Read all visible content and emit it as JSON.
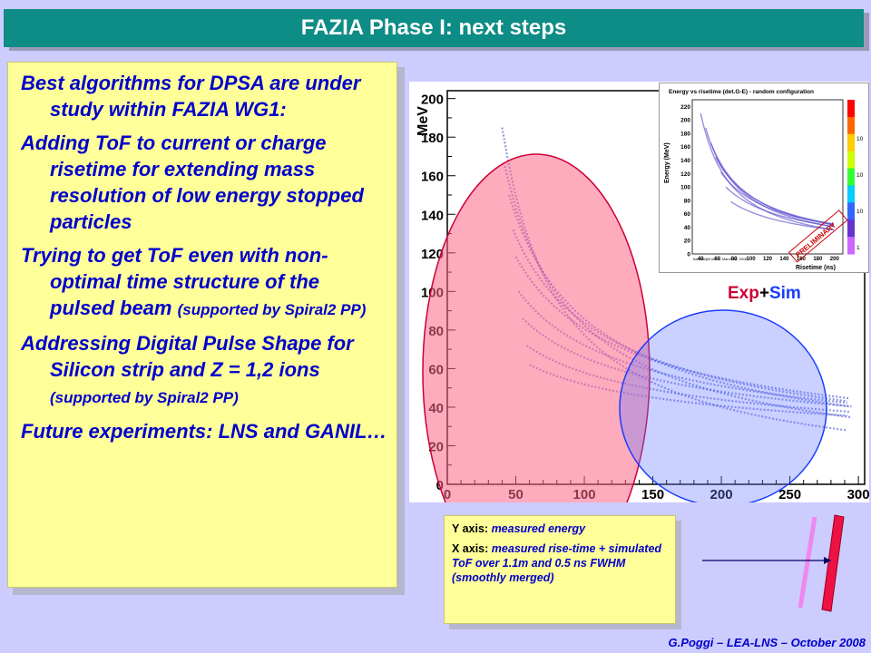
{
  "title": "FAZIA Phase I: next steps",
  "bullets": [
    {
      "text": "Best algorithms for DPSA are under study within FAZIA WG1:",
      "note": ""
    },
    {
      "text": "Adding ToF to current or charge risetime for extending mass resolution of low energy stopped particles",
      "note": ""
    },
    {
      "text": "Trying to get ToF even with non-optimal time structure of the pulsed beam",
      "note": "(supported by Spiral2 PP)"
    },
    {
      "text": "Addressing Digital Pulse Shape for Silicon strip and Z = 1,2 ions",
      "note": "(supported by Spiral2 PP)"
    },
    {
      "text": "Future experiments: LNS and GANIL…",
      "note": ""
    }
  ],
  "plot": {
    "y_unit": "MeV",
    "y_ticks": [
      "200",
      "180",
      "160",
      "140",
      "120",
      "100",
      "80",
      "60",
      "40",
      "20",
      "0"
    ],
    "x_ticks": [
      "0",
      "50",
      "100",
      "150",
      "200",
      "250",
      "300"
    ],
    "label_exp": "Exp",
    "label_plus": "+",
    "label_sim": "Sim",
    "colors": {
      "exp": "#cc0033",
      "sim": "#1a3cff",
      "plus": "#000000",
      "points": "#3344cc",
      "pink_region": "#ff6688",
      "blue_region": "#6677ff"
    }
  },
  "inset": {
    "title": "Energy vs risetime (det.G-E) - random configuration",
    "y_label": "Energy (MeV)",
    "x_label": "Risetime (ns)",
    "y_ticks": [
      "220",
      "200",
      "180",
      "160",
      "140",
      "120",
      "100",
      "80",
      "60",
      "40",
      "20",
      "0"
    ],
    "x_ticks": [
      "40",
      "60",
      "80",
      "100",
      "120",
      "140",
      "160",
      "180",
      "200"
    ],
    "scale_ticks": [
      "10",
      "10",
      "10",
      "1"
    ],
    "stamp": "PRELIMINARY",
    "footnote": "bandini@fi.infn.it, March 28, 2008"
  },
  "caption": {
    "y_label": "Y axis:",
    "y_value": "measured energy",
    "x_label": "X axis:",
    "x_value": "measured rise-time + simulated ToF over 1.1m and 0.5 ns FWHM (smoothly merged)"
  },
  "footer": "G.Poggi – LEA-LNS – October 2008"
}
